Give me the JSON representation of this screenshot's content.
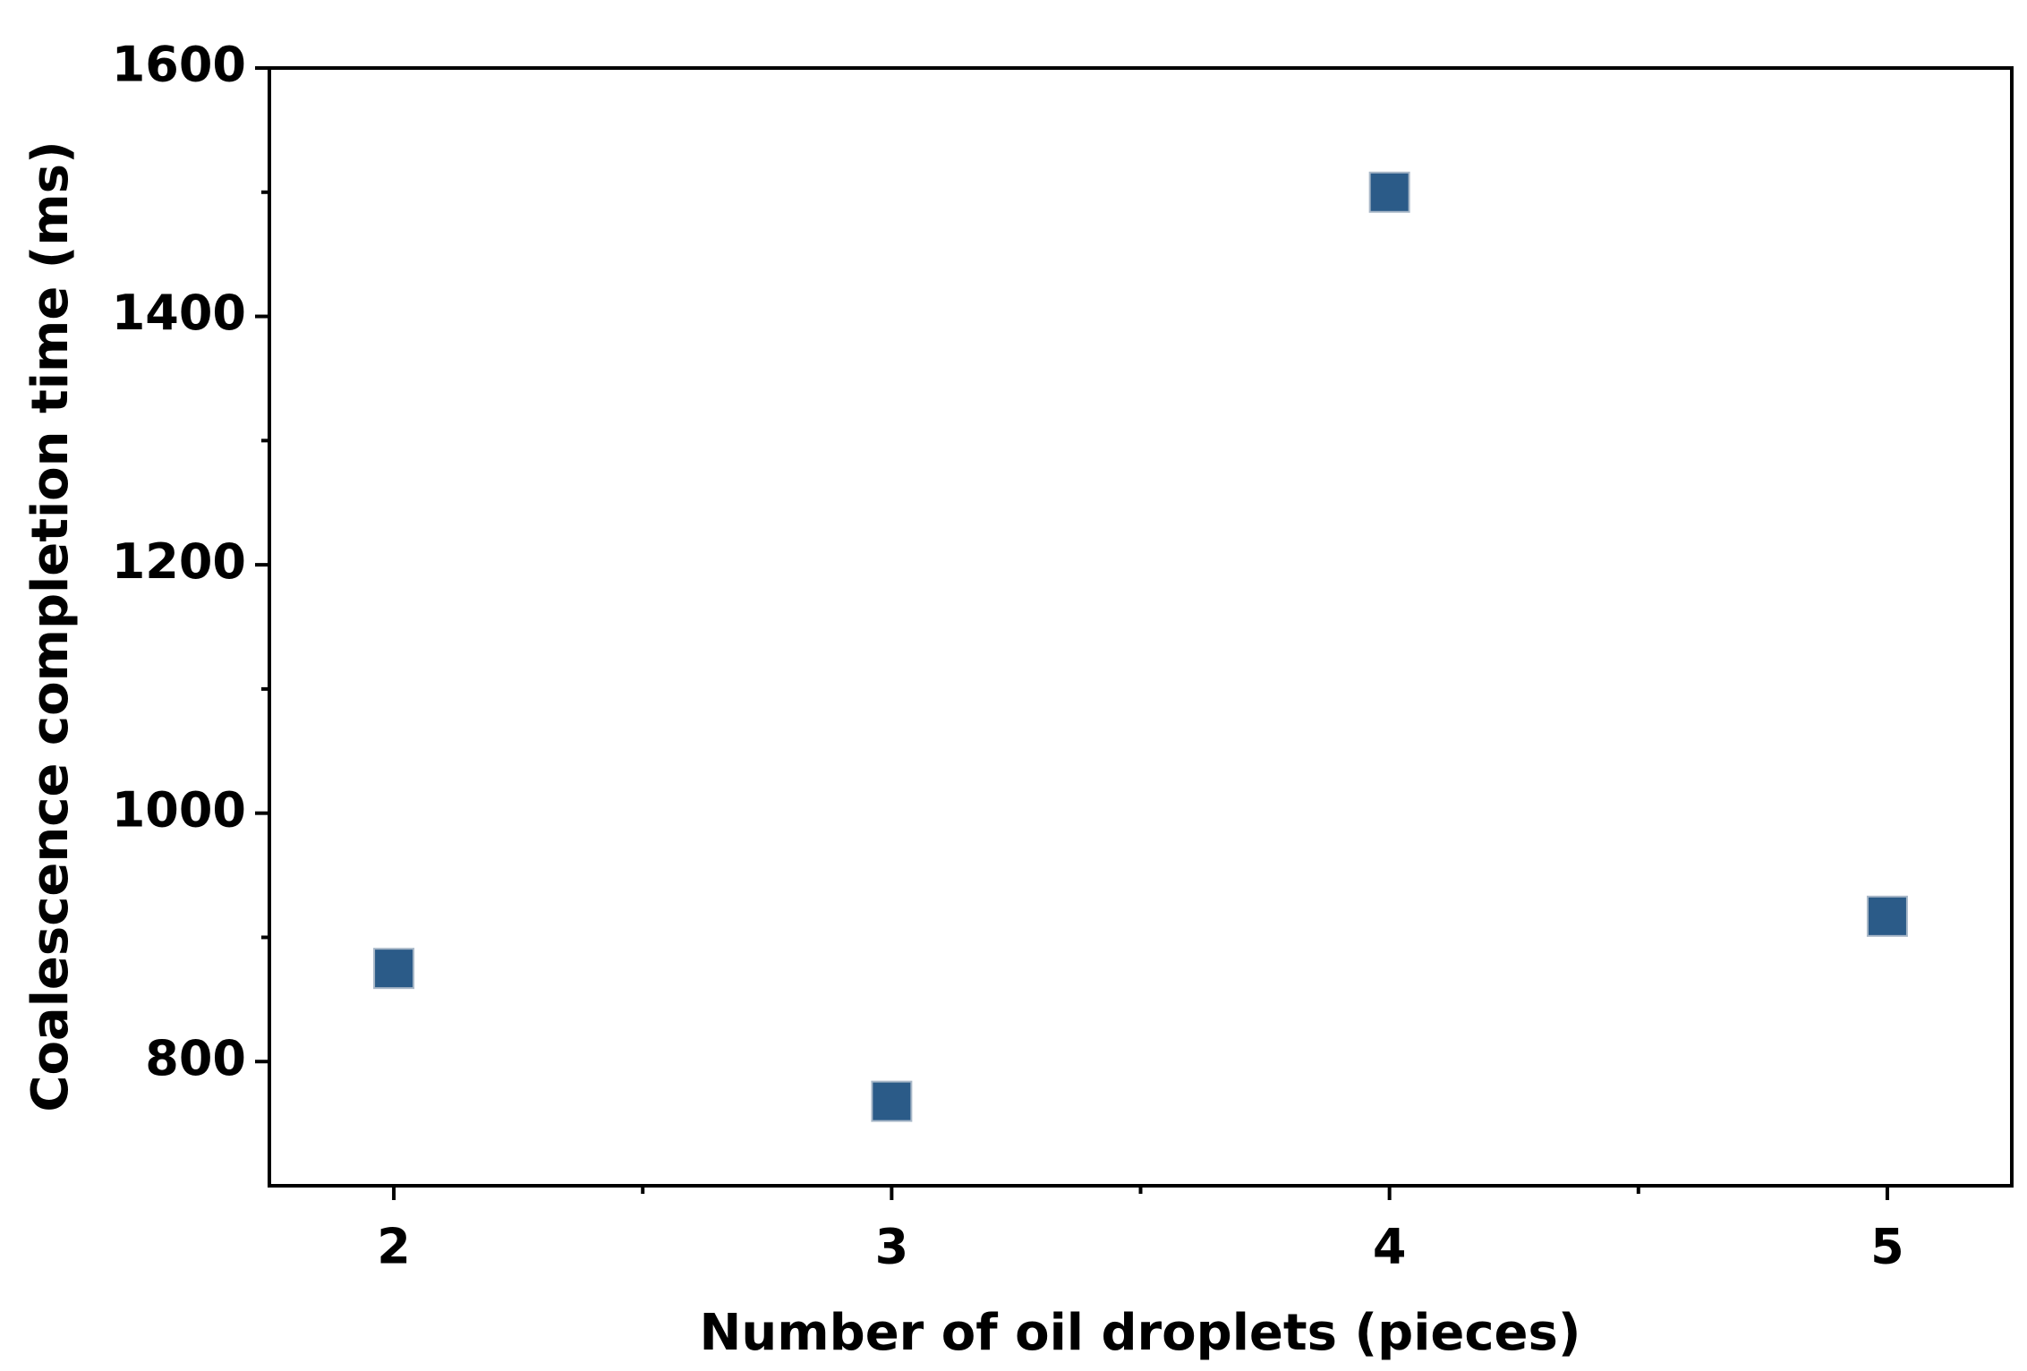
{
  "chart_data": {
    "type": "scatter",
    "x_label": "Number of oil droplets (pieces)",
    "y_label": "Coalescence completion time (ms)",
    "x": [
      2,
      3,
      4,
      5
    ],
    "series": [
      {
        "color": "#2b5b88",
        "values": [
          875,
          768,
          1500,
          917
        ]
      }
    ],
    "xlim": [
      1.75,
      5.25
    ],
    "xticks": [
      2,
      3,
      4,
      5
    ],
    "xminorticks": [
      2.5,
      3.5,
      4.5
    ],
    "ylim": [
      700,
      1600
    ],
    "yticks": [
      800,
      1000,
      1200,
      1400,
      1600
    ],
    "yminorticks": [
      900,
      1100,
      1300,
      1500
    ],
    "marker": "square",
    "grid": false
  }
}
